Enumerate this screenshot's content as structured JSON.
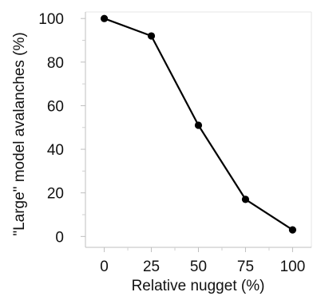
{
  "chart_data": {
    "type": "line",
    "x": [
      0,
      25,
      50,
      75,
      100
    ],
    "series": [
      {
        "values": [
          100,
          92,
          51,
          17,
          3
        ]
      }
    ],
    "xlabel": "Relative nugget (%)",
    "ylabel": "\"Large\" model avalanches (%)",
    "xticks": [
      "0",
      "25",
      "50",
      "75",
      "100"
    ],
    "yticks": [
      "0",
      "20",
      "40",
      "60",
      "80",
      "100"
    ],
    "xlim": [
      -10,
      110
    ],
    "ylim": [
      -5,
      103
    ],
    "grid": false,
    "line_color": "#000000",
    "marker_color": "#000000"
  }
}
